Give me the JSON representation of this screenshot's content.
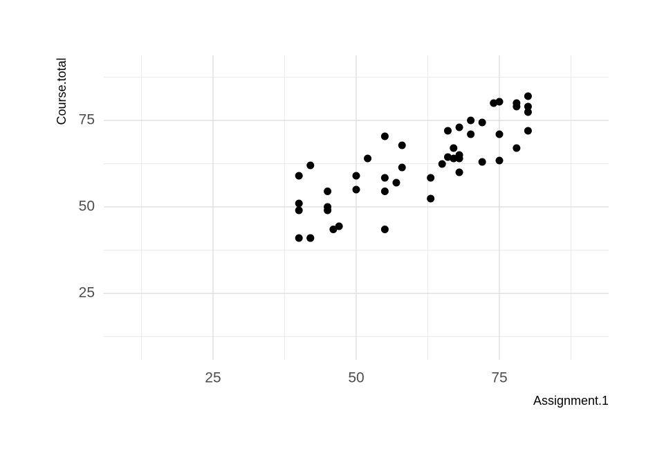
{
  "chart_data": {
    "type": "scatter",
    "x_label": "Assignment.1",
    "y_label": "Course.total",
    "x": [
      40,
      40,
      40,
      40,
      42,
      42,
      42,
      45,
      45,
      45,
      46,
      47,
      50,
      50,
      52,
      55,
      55,
      55,
      55,
      57,
      58,
      58,
      63,
      63,
      65,
      66,
      66,
      67,
      67,
      68,
      68,
      68,
      68,
      70,
      70,
      72,
      72,
      74,
      75,
      75,
      75,
      78,
      78,
      78,
      80,
      80,
      80,
      80
    ],
    "y": [
      59,
      51,
      49,
      41,
      62,
      41,
      41,
      54.5,
      50,
      49,
      43.5,
      44.4,
      59,
      55,
      64,
      70.4,
      58.4,
      54.5,
      43.5,
      57,
      67.8,
      61.4,
      58.4,
      52.4,
      62.4,
      72,
      64.4,
      67,
      64,
      64,
      73,
      65,
      60,
      75,
      71,
      74.4,
      63,
      80,
      80.4,
      71,
      63.4,
      80,
      79,
      67,
      82,
      79,
      77.4,
      72
    ],
    "color": "#000000",
    "xlim": [
      5.92,
      94.08
    ],
    "ylim": [
      5.8,
      93.8
    ],
    "xticks": [
      25,
      50,
      75
    ],
    "yticks": [
      25,
      50,
      75
    ],
    "grid": true
  }
}
